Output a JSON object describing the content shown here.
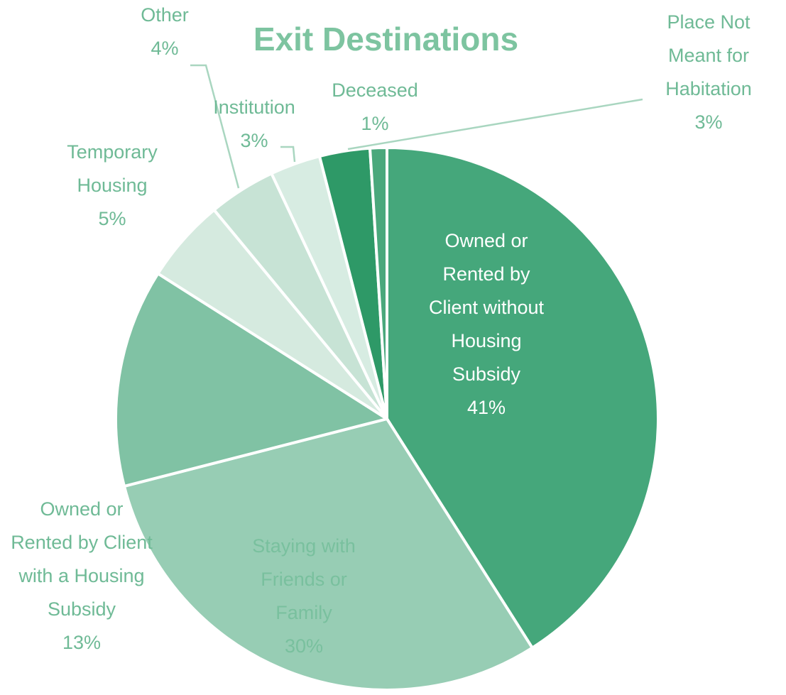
{
  "chart_data": {
    "type": "pie",
    "title": "Exit Destinations",
    "categories": [
      "Owned or Rented by Client without Housing Subsidy",
      "Staying with Friends or Family",
      "Owned or Rented by Client with a Housing Subsidy",
      "Temporary Housing",
      "Other",
      "Institution",
      "Place Not Meant for Habitation",
      "Deceased"
    ],
    "values": [
      41,
      30,
      13,
      5,
      4,
      3,
      3,
      1
    ],
    "value_labels": [
      "41%",
      "30%",
      "13%",
      "5%",
      "4%",
      "3%",
      "3%",
      "1%"
    ],
    "colors": [
      "#45a77b",
      "#97cdb4",
      "#80c2a4",
      "#d5eadf",
      "#c7e3d5",
      "#d7ece2",
      "#2e9967",
      "#4aa87c"
    ]
  }
}
